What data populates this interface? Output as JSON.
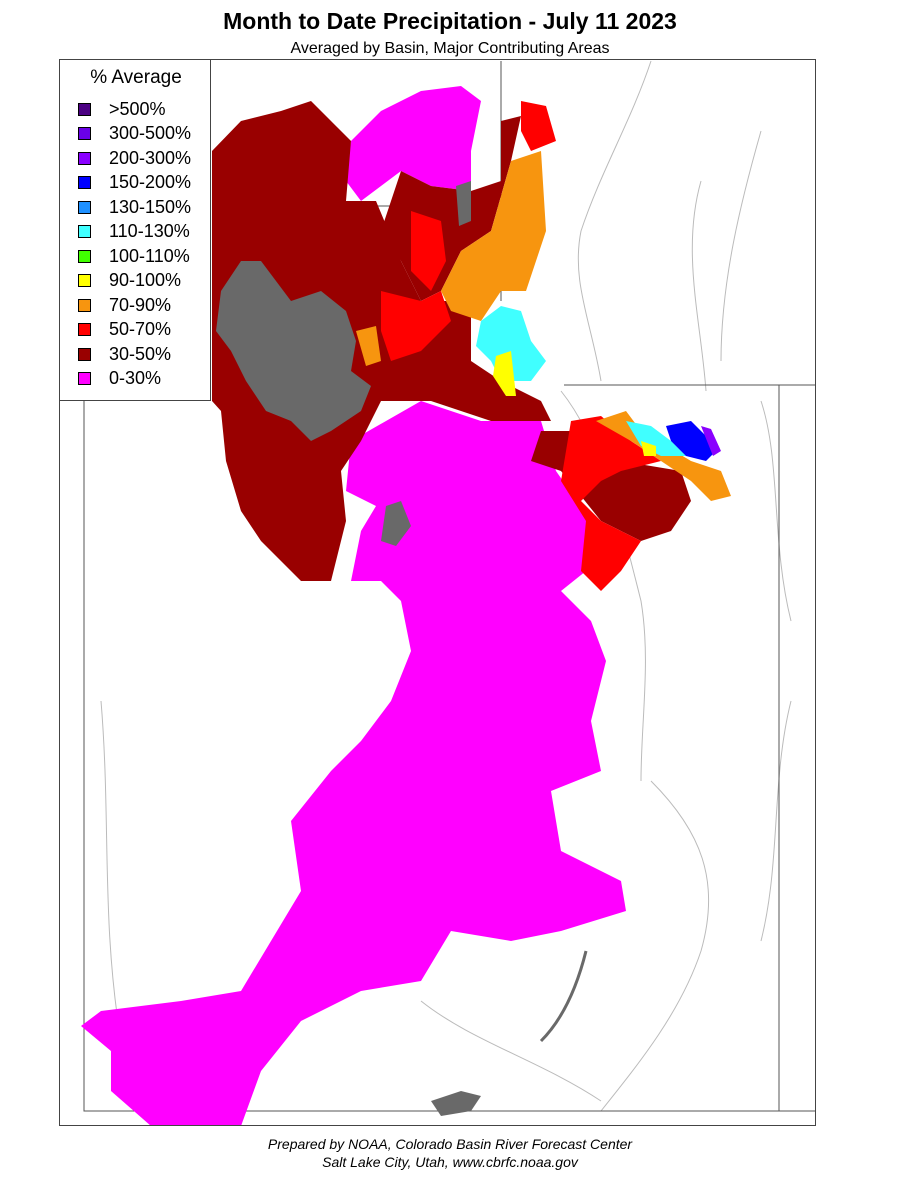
{
  "header": {
    "title": "Month to Date Precipitation - July 11 2023",
    "subtitle": "Averaged by Basin, Major Contributing Areas"
  },
  "legend": {
    "title": "% Average",
    "items": [
      {
        "label": ">500%",
        "color": "#4b0082"
      },
      {
        "label": "300-500%",
        "color": "#6a00e8"
      },
      {
        "label": "200-300%",
        "color": "#8a00ff"
      },
      {
        "label": "150-200%",
        "color": "#0000ff"
      },
      {
        "label": "130-150%",
        "color": "#1e90ff"
      },
      {
        "label": "110-130%",
        "color": "#40ffff"
      },
      {
        "label": "100-110%",
        "color": "#40ff00"
      },
      {
        "label": "90-100%",
        "color": "#ffff00"
      },
      {
        "label": "70-90%",
        "color": "#f7950f"
      },
      {
        "label": "50-70%",
        "color": "#ff0000"
      },
      {
        "label": "30-50%",
        "color": "#990000"
      },
      {
        "label": "0-30%",
        "color": "#ff00ff"
      }
    ]
  },
  "map": {
    "colors": {
      "no_data": "#696969",
      "state_lines": "#555555",
      "rivers": "#bbbbbb"
    }
  },
  "footer": {
    "line1": "Prepared by NOAA, Colorado Basin River Forecast Center",
    "line2": "Salt Lake City, Utah, www.cbrfc.noaa.gov"
  }
}
